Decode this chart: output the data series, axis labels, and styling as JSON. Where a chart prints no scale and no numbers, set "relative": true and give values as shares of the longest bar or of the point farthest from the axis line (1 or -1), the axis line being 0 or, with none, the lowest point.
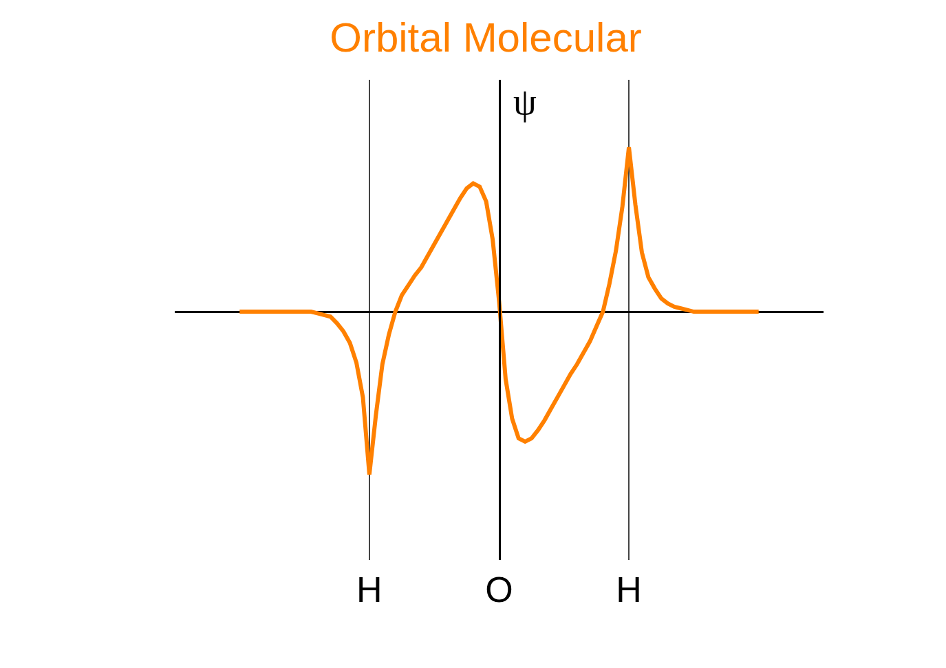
{
  "chart_data": {
    "type": "line",
    "title": "Orbital Molecular",
    "ylabel": "ψ",
    "relative": true,
    "color": "#ff8000",
    "grid": "x",
    "categories": [
      null,
      null,
      null,
      null,
      null,
      null,
      null,
      null,
      null,
      null,
      null,
      null,
      null,
      null,
      null,
      null,
      null,
      null,
      null,
      null,
      null,
      null,
      null,
      null,
      null,
      null,
      null,
      null,
      null,
      null,
      "H",
      null,
      null,
      null,
      null,
      null,
      null,
      null,
      null,
      null,
      null,
      null,
      null,
      null,
      null,
      null,
      null,
      null,
      null,
      null,
      "O",
      null,
      null,
      null,
      null,
      null,
      null,
      null,
      null,
      null,
      null,
      null,
      null,
      null,
      null,
      null,
      null,
      null,
      null,
      null,
      "H",
      null,
      null,
      null,
      null,
      null,
      null,
      null,
      null,
      null,
      null,
      null,
      null,
      null,
      null,
      null,
      null,
      null,
      null,
      null,
      null,
      null,
      null,
      null,
      null,
      null,
      null,
      null,
      null,
      null,
      null
    ],
    "values": [
      null,
      null,
      null,
      null,
      null,
      null,
      null,
      null,
      null,
      null,
      0,
      0,
      0,
      0,
      0,
      0,
      0,
      0,
      0,
      0,
      0,
      0,
      -0.01,
      -0.02,
      -0.03,
      -0.07,
      -0.12,
      -0.19,
      -0.31,
      -0.52,
      -0.99,
      -0.63,
      -0.32,
      -0.14,
      0,
      0.1,
      0.16,
      0.22,
      0.27,
      0.34,
      0.41,
      0.48,
      0.55,
      0.62,
      0.69,
      0.75,
      0.78,
      0.76,
      0.67,
      0.44,
      0.06,
      -0.41,
      -0.65,
      -0.77,
      -0.79,
      -0.77,
      -0.72,
      -0.66,
      -0.59,
      -0.52,
      -0.45,
      -0.38,
      -0.32,
      -0.25,
      -0.18,
      -0.09,
      0,
      0.17,
      0.37,
      0.64,
      1,
      0.65,
      0.36,
      0.21,
      0.14,
      0.08,
      0.05,
      0.03,
      0.02,
      0.01,
      0,
      0,
      0,
      0,
      0,
      0,
      0,
      0,
      0,
      0,
      0,
      null,
      null,
      null,
      null,
      null,
      null,
      null,
      null,
      null,
      null
    ]
  }
}
